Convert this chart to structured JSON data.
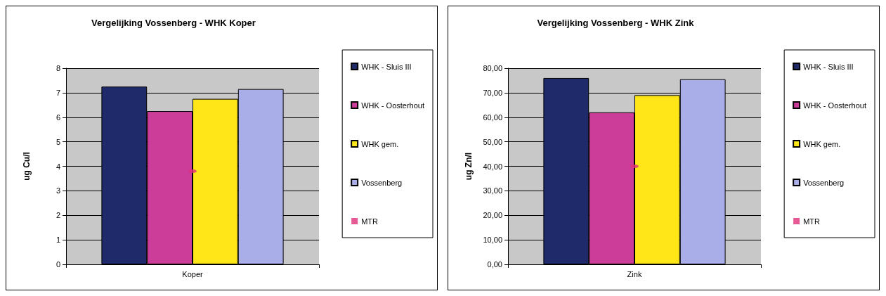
{
  "chart_data": [
    {
      "type": "bar",
      "title": "Vergelijking Vossenberg - WHK Koper",
      "ylabel": "ug Cu/l",
      "categories": [
        "Koper"
      ],
      "series": [
        {
          "name": "WHK - Sluis III",
          "color": "#1f2a6b",
          "values": [
            7.25
          ]
        },
        {
          "name": "WHK - Oosterhout",
          "color": "#cc3d99",
          "values": [
            6.25
          ]
        },
        {
          "name": "WHK gem.",
          "color": "#ffe619",
          "values": [
            6.75
          ]
        },
        {
          "name": "Vossenberg",
          "color": "#a9aee8",
          "values": [
            7.15
          ]
        },
        {
          "name": "MTR",
          "type": "scatter",
          "color": "#e0307a",
          "x": [
            "Koper"
          ],
          "values": [
            3.8
          ]
        }
      ],
      "ylim": [
        0,
        8
      ],
      "yticks": [
        0,
        1,
        2,
        3,
        4,
        5,
        6,
        7,
        8
      ],
      "grid": "y",
      "legend": "right"
    },
    {
      "type": "bar",
      "title": "Vergelijking Vossenberg - WHK Zink",
      "ylabel": "ug Zn/l",
      "categories": [
        "Zink"
      ],
      "series": [
        {
          "name": "WHK - Sluis III",
          "color": "#1f2a6b",
          "values": [
            76
          ]
        },
        {
          "name": "WHK - Oosterhout",
          "color": "#cc3d99",
          "values": [
            62
          ]
        },
        {
          "name": "WHK gem.",
          "color": "#ffe619",
          "values": [
            69
          ]
        },
        {
          "name": "Vossenberg",
          "color": "#a9aee8",
          "values": [
            75.5
          ]
        },
        {
          "name": "MTR",
          "type": "scatter",
          "color": "#e0307a",
          "x": [
            "Zink"
          ],
          "values": [
            40
          ]
        }
      ],
      "ylim": [
        0,
        80
      ],
      "yticks": [
        {
          "value": 0,
          "label": "0,00"
        },
        {
          "value": 10,
          "label": "10,00"
        },
        {
          "value": 20,
          "label": "20,00"
        },
        {
          "value": 30,
          "label": "30,00"
        },
        {
          "value": 40,
          "label": "40,00"
        },
        {
          "value": 50,
          "label": "50,00"
        },
        {
          "value": 60,
          "label": "60,00"
        },
        {
          "value": 70,
          "label": "70,00"
        },
        {
          "value": 80,
          "label": "80,00"
        }
      ],
      "grid": "y",
      "legend": "right"
    }
  ]
}
